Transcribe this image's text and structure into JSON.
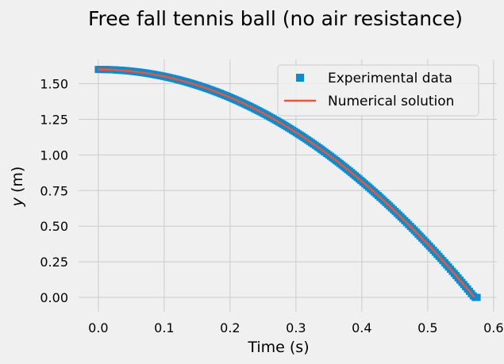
{
  "chart_data": {
    "type": "line",
    "title": "Free fall tennis ball (no air resistance)",
    "xlabel": "Time (s)",
    "ylabel_var": "y",
    "ylabel_unit": " (m)",
    "xlim": [
      -0.03,
      0.605
    ],
    "ylim": [
      -0.1,
      1.67
    ],
    "xticks": [
      0.0,
      0.1,
      0.2,
      0.3,
      0.4,
      0.5,
      0.6
    ],
    "xtick_labels": [
      "0.0",
      "0.1",
      "0.2",
      "0.3",
      "0.4",
      "0.5",
      "0.6"
    ],
    "yticks": [
      0.0,
      0.25,
      0.5,
      0.75,
      1.0,
      1.25,
      1.5
    ],
    "ytick_labels": [
      "0.00",
      "0.25",
      "0.50",
      "0.75",
      "1.00",
      "1.25",
      "1.50"
    ],
    "grid": true,
    "legend_position": "top-right",
    "series": [
      {
        "name": "Experimental data",
        "kind": "scatter",
        "marker": "square",
        "color": "#008fd5",
        "model": {
          "y0": 1.6,
          "g": 9.81,
          "t_start": 0.0,
          "t_end": 0.575,
          "samples": 200
        }
      },
      {
        "name": "Numerical solution",
        "kind": "line",
        "color": "#fc4f30",
        "model": {
          "y0": 1.6,
          "g": 9.81,
          "t_start": 0.0,
          "t_end": 0.571,
          "samples": 120
        }
      }
    ]
  }
}
